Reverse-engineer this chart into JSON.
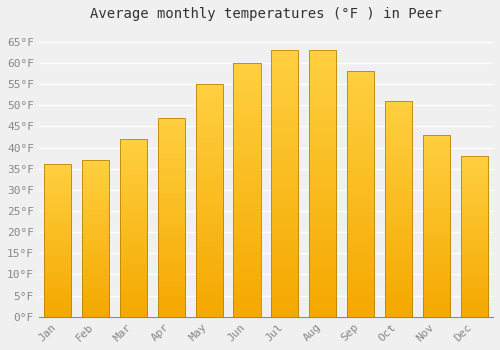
{
  "title": "Average monthly temperatures (°F ) in Peer",
  "months": [
    "Jan",
    "Feb",
    "Mar",
    "Apr",
    "May",
    "Jun",
    "Jul",
    "Aug",
    "Sep",
    "Oct",
    "Nov",
    "Dec"
  ],
  "values": [
    36,
    37,
    42,
    47,
    55,
    60,
    63,
    63,
    58,
    51,
    43,
    38
  ],
  "bar_color_bottom": "#F5A800",
  "bar_color_top": "#FFD040",
  "bar_edge_color": "#B8860B",
  "ylim": [
    0,
    68
  ],
  "yticks": [
    0,
    5,
    10,
    15,
    20,
    25,
    30,
    35,
    40,
    45,
    50,
    55,
    60,
    65
  ],
  "background_color": "#f0f0f0",
  "grid_color": "#ffffff",
  "title_fontsize": 10,
  "tick_fontsize": 8,
  "font_family": "monospace",
  "tick_color": "#888888",
  "title_color": "#333333"
}
